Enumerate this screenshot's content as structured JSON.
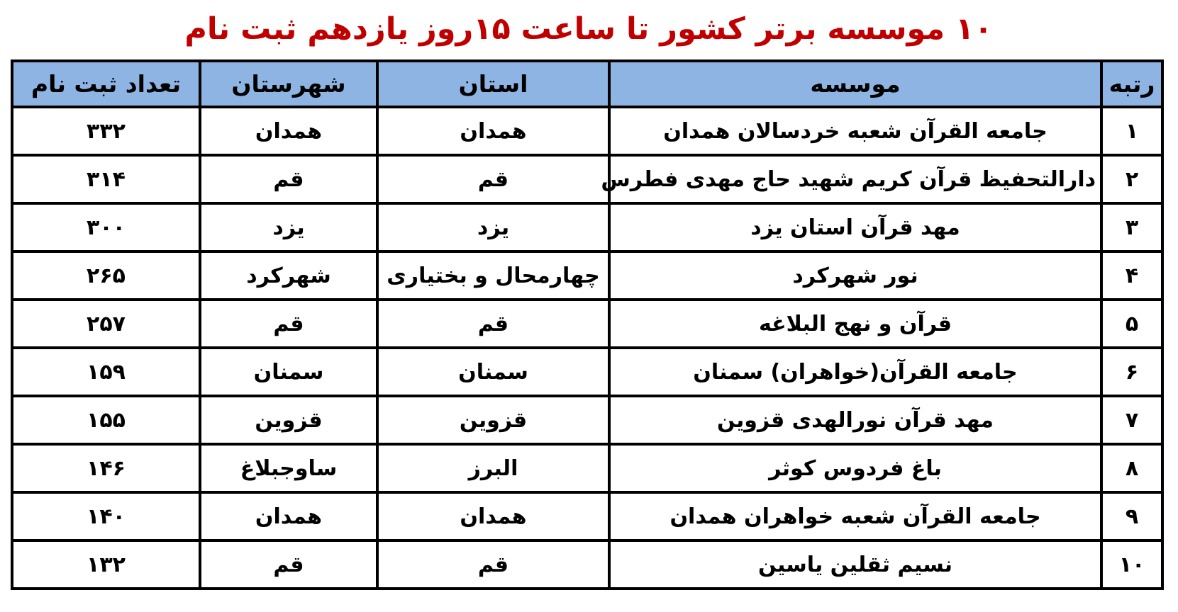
{
  "title": "۱۰ موسسه برتر کشور تا ساعت  ۱۵روز یازدهم ثبت نام",
  "colors": {
    "title_red": "#C00000",
    "header_bg": "#8DB4E2",
    "border": "#000000",
    "text": "#000000",
    "page_bg": "#ffffff"
  },
  "table": {
    "headers": [
      "رتبه",
      "موسسه",
      "استان",
      "شهرستان",
      "تعداد ثبت نام"
    ],
    "rows": [
      [
        "۱",
        "جامعه القرآن شعبه خردسالان همدان",
        "همدان",
        "همدان",
        "۳۳۲"
      ],
      [
        "۲",
        "دارالتحفیظ قرآن کریم شهید حاج مهدی فطرس",
        "قم",
        "قم",
        "۳۱۴"
      ],
      [
        "۳",
        "مهد قرآن استان یزد",
        "یزد",
        "یزد",
        "۳۰۰"
      ],
      [
        "۴",
        "نور شهرکرد",
        "چهارمحال و بختیاری",
        "شهرکرد",
        "۲۶۵"
      ],
      [
        "۵",
        "قرآن و نهج البلاغه",
        "قم",
        "قم",
        "۲۵۷"
      ],
      [
        "۶",
        "جامعه القرآن(خواهران) سمنان",
        "سمنان",
        "سمنان",
        "۱۵۹"
      ],
      [
        "۷",
        "مهد قرآن نورالهدی قزوین",
        "قزوین",
        "قزوین",
        "۱۵۵"
      ],
      [
        "۸",
        "باغ فردوس کوثر",
        "البرز",
        "ساوجبلاغ",
        "۱۴۶"
      ],
      [
        "۹",
        "جامعه القرآن شعبه خواهران همدان",
        "همدان",
        "همدان",
        "۱۴۰"
      ],
      [
        "۱۰",
        "نسیم ثقلین یاسین",
        "قم",
        "قم",
        "۱۳۲"
      ]
    ]
  }
}
